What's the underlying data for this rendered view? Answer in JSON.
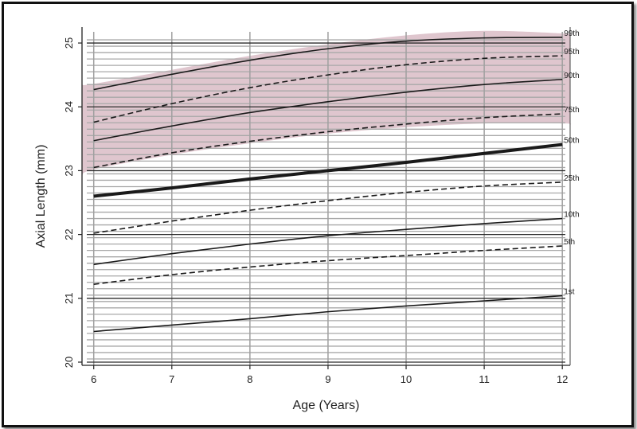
{
  "chart_data": {
    "type": "line",
    "title": "",
    "xlabel": "Age (Years)",
    "ylabel": "Axial Length (mm)",
    "xlim": [
      5.85,
      12.1
    ],
    "ylim": [
      19.95,
      25.25
    ],
    "xticks": [
      6,
      7,
      8,
      9,
      10,
      11,
      12
    ],
    "yticks": [
      20,
      21,
      22,
      23,
      24,
      25
    ],
    "grid": true,
    "minor_y_step": 0.1,
    "band_color": "#d9bcc6",
    "x": [
      6,
      7,
      8,
      9,
      10,
      11,
      12
    ],
    "series": [
      {
        "name": "99th",
        "style": "solid",
        "width": 1.6,
        "values": [
          24.27,
          24.51,
          24.73,
          24.91,
          25.03,
          25.08,
          25.09
        ]
      },
      {
        "name": "95th",
        "style": "dashed",
        "width": 1.6,
        "values": [
          23.76,
          24.05,
          24.3,
          24.5,
          24.66,
          24.76,
          24.8
        ]
      },
      {
        "name": "90th",
        "style": "solid",
        "width": 1.6,
        "values": [
          23.47,
          23.7,
          23.91,
          24.08,
          24.23,
          24.35,
          24.43
        ]
      },
      {
        "name": "75th",
        "style": "dashed",
        "width": 1.6,
        "values": [
          23.05,
          23.28,
          23.46,
          23.61,
          23.73,
          23.83,
          23.89
        ]
      },
      {
        "name": "50th",
        "style": "solid",
        "width": 4,
        "values": [
          22.6,
          22.73,
          22.87,
          23.0,
          23.13,
          23.27,
          23.41
        ]
      },
      {
        "name": "25th",
        "style": "dashed",
        "width": 1.6,
        "values": [
          22.02,
          22.21,
          22.38,
          22.53,
          22.66,
          22.76,
          22.82
        ]
      },
      {
        "name": "10th",
        "style": "solid",
        "width": 1.6,
        "values": [
          21.53,
          21.7,
          21.85,
          21.98,
          22.08,
          22.17,
          22.25
        ]
      },
      {
        "name": "5th",
        "style": "dashed",
        "width": 1.6,
        "values": [
          21.22,
          21.37,
          21.49,
          21.59,
          21.67,
          21.75,
          21.82
        ]
      },
      {
        "name": "1st",
        "style": "solid",
        "width": 1.6,
        "values": [
          20.48,
          20.58,
          20.68,
          20.79,
          20.88,
          20.96,
          21.04
        ]
      }
    ],
    "band": {
      "upper": [
        [
          5.85,
          24.35
        ],
        [
          6,
          24.36
        ],
        [
          7,
          24.58
        ],
        [
          8,
          24.8
        ],
        [
          9,
          24.98
        ],
        [
          10,
          25.12
        ],
        [
          11,
          25.19
        ],
        [
          12,
          25.15
        ],
        [
          12.1,
          25.12
        ]
      ],
      "lower": [
        [
          5.85,
          22.92
        ],
        [
          6,
          23.02
        ],
        [
          7,
          23.25
        ],
        [
          8,
          23.43
        ],
        [
          9,
          23.58
        ],
        [
          10,
          23.68
        ],
        [
          11,
          23.74
        ],
        [
          12,
          23.74
        ],
        [
          12.1,
          23.72
        ]
      ]
    }
  }
}
